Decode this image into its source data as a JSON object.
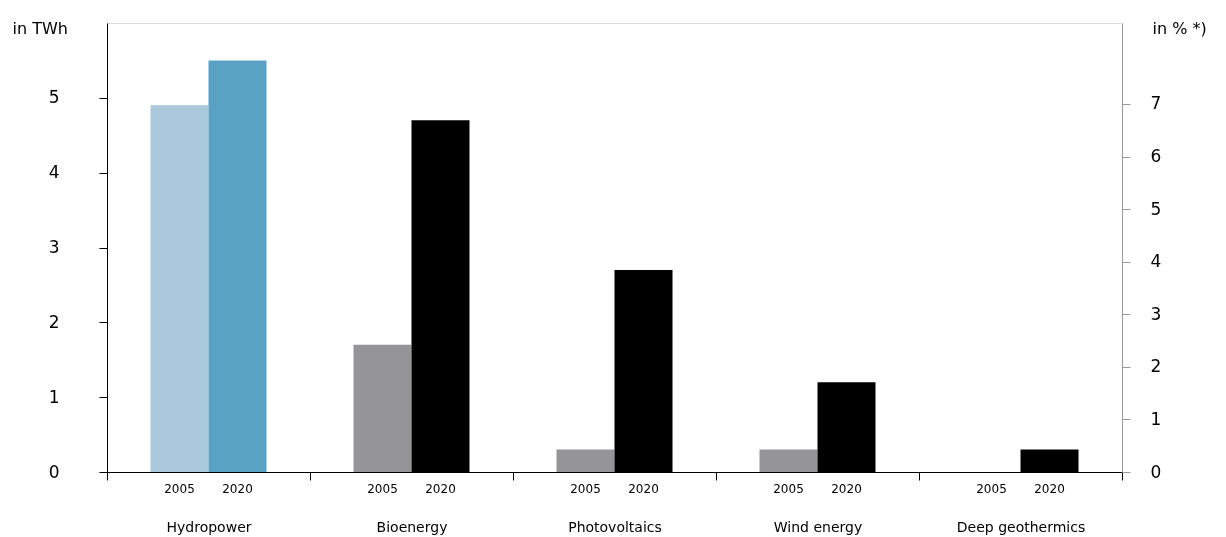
{
  "chart_data": {
    "type": "bar",
    "categories": [
      "Hydropower",
      "Bioenergy",
      "Photovoltaics",
      "Wind energy",
      "Deep geothermics"
    ],
    "series": [
      {
        "name": "2005",
        "colors": [
          "#abc9dc",
          "#959598",
          "#959598",
          "#959598",
          "#959598"
        ],
        "values": [
          4.9,
          1.7,
          0.3,
          0.3,
          0
        ]
      },
      {
        "name": "2020",
        "colors": [
          "#5aa2c3",
          "#000000",
          "#000000",
          "#000000",
          "#000000"
        ],
        "values": [
          5.5,
          4.7,
          2.7,
          1.2,
          0.3
        ]
      }
    ],
    "ylabel": "in TWh",
    "y2label": "in % *)",
    "ylim": [
      0,
      6
    ],
    "yticks": [
      0,
      1,
      2,
      3,
      4,
      5
    ],
    "y2lim": [
      0,
      8.54
    ],
    "y2ticks": [
      0,
      1,
      2,
      3,
      4,
      5,
      6,
      7
    ],
    "grid": false
  }
}
